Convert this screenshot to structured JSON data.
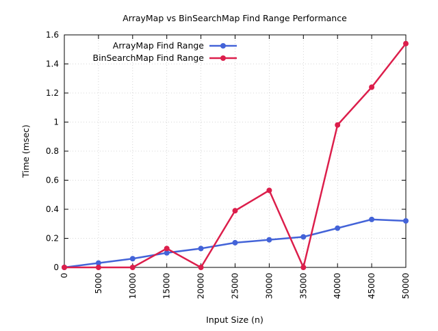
{
  "chart_data": {
    "type": "line",
    "title": "ArrayMap vs BinSearchMap Find Range Performance",
    "xlabel": "Input Size (n)",
    "ylabel": "Time (msec)",
    "x": [
      0,
      5000,
      10000,
      15000,
      20000,
      25000,
      30000,
      35000,
      40000,
      45000,
      50000
    ],
    "xlim": [
      0,
      50000
    ],
    "ylim": [
      0,
      1.6
    ],
    "xticks": [
      "0",
      "5000",
      "10000",
      "15000",
      "20000",
      "25000",
      "30000",
      "35000",
      "40000",
      "45000",
      "50000"
    ],
    "yticks": [
      "0",
      "0.2",
      "0.4",
      "0.6",
      "0.8",
      "1",
      "1.2",
      "1.4",
      "1.6"
    ],
    "ytick_values": [
      0,
      0.2,
      0.4,
      0.6,
      0.8,
      1.0,
      1.2,
      1.4,
      1.6
    ],
    "grid": true,
    "legend_position": "top-left",
    "series": [
      {
        "name": "ArrayMap Find Range",
        "color": "#4363d8",
        "values": [
          0,
          0.03,
          0.06,
          0.1,
          0.13,
          0.17,
          0.19,
          0.21,
          0.27,
          0.33,
          0.32
        ]
      },
      {
        "name": "BinSearchMap Find Range",
        "color": "#dc1e4b",
        "values": [
          0,
          0,
          0,
          0.13,
          0,
          0.39,
          0.53,
          0,
          0.98,
          1.24,
          1.54
        ]
      }
    ]
  }
}
